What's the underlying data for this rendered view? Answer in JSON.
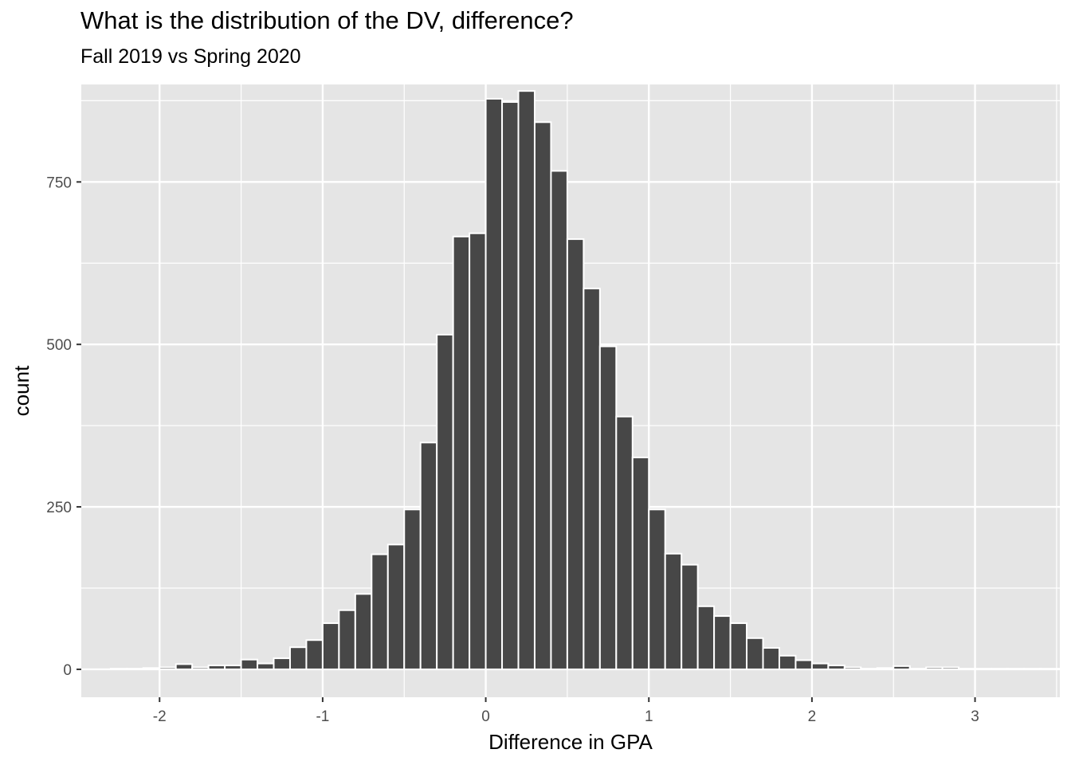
{
  "chart_data": {
    "type": "bar",
    "title": "What is the distribution of the DV, difference?",
    "subtitle": "Fall 2019 vs Spring 2020",
    "xlabel": "Difference in GPA",
    "ylabel": "count",
    "xlim": [
      -2.48,
      3.52
    ],
    "ylim": [
      -43,
      900
    ],
    "x_ticks": [
      -2,
      -1,
      0,
      1,
      2,
      3
    ],
    "x_tick_labels": [
      "-2",
      "-1",
      "0",
      "1",
      "2",
      "3"
    ],
    "y_ticks": [
      0,
      250,
      500,
      750
    ],
    "y_tick_labels": [
      "0",
      "250",
      "500",
      "750"
    ],
    "grid": true,
    "legend": "none",
    "bin_width": 0.1,
    "bins_start": -2.3,
    "values": [
      1,
      1,
      2,
      3,
      8,
      3,
      6,
      6,
      15,
      9,
      17,
      34,
      45,
      71,
      91,
      116,
      177,
      192,
      246,
      349,
      515,
      666,
      671,
      878,
      873,
      890,
      842,
      767,
      662,
      586,
      497,
      389,
      326,
      246,
      178,
      161,
      97,
      82,
      71,
      48,
      33,
      21,
      14,
      9,
      6,
      3,
      1,
      2,
      5,
      1,
      3,
      3,
      1,
      1,
      1,
      1,
      1,
      1,
      1,
      2
    ],
    "colors": {
      "panel_background": "#e5e5e5",
      "grid": "#ffffff",
      "bar_fill": "#474747",
      "bar_outline": "#ffffff",
      "tick_label": "#4d4d4d"
    }
  }
}
